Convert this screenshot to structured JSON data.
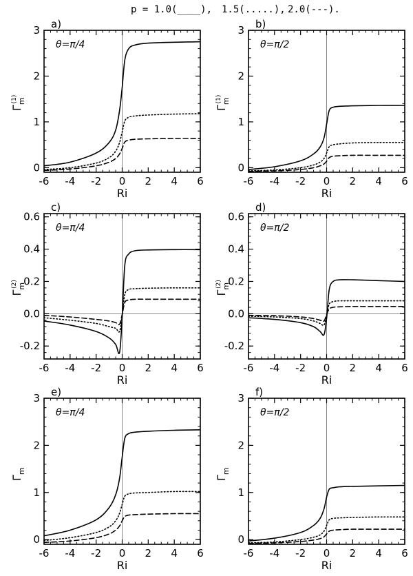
{
  "header": {
    "text": "p = 1.0(____),   1.5(.....),   2.0(---).",
    "legend": [
      {
        "label": "p = 1.0(____),",
        "style": "solid"
      },
      {
        "label": "1.5(.....),",
        "style": "dotted"
      },
      {
        "label": "2.0(---).",
        "style": "dashed"
      }
    ]
  },
  "chart_data": [
    {
      "type": "line",
      "panel_label": "a)",
      "annotation": "θ=π/4",
      "xlabel": "Ri",
      "ylabel": "Γ",
      "ylabel_sub": "m",
      "ylabel_sup": "(1)",
      "xlim": [
        -6,
        6
      ],
      "ylim": [
        -0.1,
        3.0
      ],
      "xticks": [
        -6,
        -4,
        -2,
        0,
        2,
        4,
        6
      ],
      "yticks": [
        0,
        1,
        2,
        3
      ],
      "ytick_labels": [
        "0",
        "1",
        "2",
        "3"
      ],
      "ref_vline": 0,
      "ref_hline": null,
      "series": [
        {
          "name": "p = 1.0",
          "style": "solid",
          "x": [
            -6,
            -4,
            -2,
            -1,
            -0.5,
            -0.2,
            0,
            0.2,
            0.5,
            1,
            2,
            4,
            6
          ],
          "y": [
            0.04,
            0.12,
            0.32,
            0.55,
            0.82,
            1.25,
            1.75,
            2.35,
            2.6,
            2.68,
            2.72,
            2.74,
            2.75
          ]
        },
        {
          "name": "p = 1.5",
          "style": "dotted",
          "x": [
            -6,
            -4,
            -2,
            -1,
            -0.5,
            -0.2,
            0,
            0.2,
            0.5,
            1,
            2,
            4,
            6
          ],
          "y": [
            -0.04,
            0.0,
            0.1,
            0.22,
            0.36,
            0.55,
            0.78,
            1.02,
            1.1,
            1.13,
            1.15,
            1.17,
            1.18
          ]
        },
        {
          "name": "p = 2.0",
          "style": "dashed",
          "x": [
            -6,
            -4,
            -2,
            -1,
            -0.5,
            -0.2,
            0,
            0.2,
            0.5,
            1,
            2,
            4,
            6
          ],
          "y": [
            -0.06,
            -0.03,
            0.04,
            0.12,
            0.2,
            0.3,
            0.42,
            0.56,
            0.6,
            0.62,
            0.63,
            0.64,
            0.64
          ]
        }
      ]
    },
    {
      "type": "line",
      "panel_label": "b)",
      "annotation": "θ=π/2",
      "xlabel": "Ri",
      "ylabel": "Γ",
      "ylabel_sub": "m",
      "ylabel_sup": "(1)",
      "xlim": [
        -6,
        6
      ],
      "ylim": [
        -0.1,
        3.0
      ],
      "xticks": [
        -6,
        -4,
        -2,
        0,
        2,
        4,
        6
      ],
      "yticks": [
        0,
        1,
        2,
        3
      ],
      "ytick_labels": [
        "0",
        "1",
        "2",
        "3"
      ],
      "ref_vline": 0,
      "ref_hline": null,
      "series": [
        {
          "name": "p = 1.0",
          "style": "solid",
          "x": [
            -6,
            -4,
            -2,
            -1,
            -0.5,
            -0.2,
            0,
            0.2,
            0.5,
            1,
            2,
            4,
            6
          ],
          "y": [
            -0.04,
            0.02,
            0.15,
            0.3,
            0.45,
            0.65,
            0.95,
            1.25,
            1.32,
            1.34,
            1.35,
            1.36,
            1.36
          ]
        },
        {
          "name": "p = 1.5",
          "style": "dotted",
          "x": [
            -6,
            -4,
            -2,
            -1,
            -0.5,
            -0.2,
            0,
            0.2,
            0.5,
            1,
            2,
            4,
            6
          ],
          "y": [
            -0.07,
            -0.05,
            0.0,
            0.06,
            0.12,
            0.2,
            0.32,
            0.46,
            0.5,
            0.52,
            0.54,
            0.55,
            0.55
          ]
        },
        {
          "name": "p = 2.0",
          "style": "dashed",
          "x": [
            -6,
            -4,
            -2,
            -1,
            -0.5,
            -0.2,
            0,
            0.2,
            0.5,
            1,
            2,
            4,
            6
          ],
          "y": [
            -0.08,
            -0.07,
            -0.04,
            0.0,
            0.04,
            0.08,
            0.14,
            0.22,
            0.25,
            0.26,
            0.27,
            0.27,
            0.27
          ]
        }
      ]
    },
    {
      "type": "line",
      "panel_label": "c)",
      "annotation": "θ=π/4",
      "xlabel": "Ri",
      "ylabel": "Γ",
      "ylabel_sub": "m",
      "ylabel_sup": "(2)",
      "xlim": [
        -6,
        6
      ],
      "ylim": [
        -0.28,
        0.62
      ],
      "xticks": [
        -6,
        -4,
        -2,
        0,
        2,
        4,
        6
      ],
      "yticks": [
        -0.2,
        0.0,
        0.2,
        0.4,
        0.6
      ],
      "ytick_labels": [
        "-0.2",
        "0.0",
        "0.2",
        "0.4",
        "0.6"
      ],
      "ref_vline": 0,
      "ref_hline": 0,
      "series": [
        {
          "name": "p = 1.0",
          "style": "solid",
          "x": [
            -6,
            -4,
            -2,
            -1,
            -0.5,
            -0.2,
            0,
            0.2,
            0.5,
            1,
            2,
            4,
            6
          ],
          "y": [
            -0.045,
            -0.07,
            -0.11,
            -0.15,
            -0.19,
            -0.24,
            -0.02,
            0.3,
            0.37,
            0.39,
            0.395,
            0.397,
            0.397
          ]
        },
        {
          "name": "p = 1.5",
          "style": "dotted",
          "x": [
            -6,
            -4,
            -2,
            -1,
            -0.5,
            -0.2,
            0,
            0.2,
            0.5,
            1,
            2,
            4,
            6
          ],
          "y": [
            -0.025,
            -0.04,
            -0.06,
            -0.08,
            -0.09,
            -0.11,
            -0.01,
            0.12,
            0.15,
            0.155,
            0.158,
            0.16,
            0.16
          ]
        },
        {
          "name": "p = 2.0",
          "style": "dashed",
          "x": [
            -6,
            -4,
            -2,
            -1,
            -0.5,
            -0.2,
            0,
            0.2,
            0.5,
            1,
            2,
            4,
            6
          ],
          "y": [
            -0.01,
            -0.02,
            -0.035,
            -0.045,
            -0.055,
            -0.065,
            -0.005,
            0.07,
            0.085,
            0.09,
            0.09,
            0.09,
            0.09
          ]
        }
      ]
    },
    {
      "type": "line",
      "panel_label": "d)",
      "annotation": "θ=π/2",
      "xlabel": "Ri",
      "ylabel": "Γ",
      "ylabel_sub": "m",
      "ylabel_sup": "(2)",
      "xlim": [
        -6,
        6
      ],
      "ylim": [
        -0.28,
        0.62
      ],
      "xticks": [
        -6,
        -4,
        -2,
        0,
        2,
        4,
        6
      ],
      "yticks": [
        -0.2,
        0.0,
        0.2,
        0.4,
        0.6
      ],
      "ytick_labels": [
        "-0.2",
        "0.0",
        "0.2",
        "0.4",
        "0.6"
      ],
      "ref_vline": 0,
      "ref_hline": 0,
      "series": [
        {
          "name": "p = 1.0",
          "style": "solid",
          "x": [
            -6,
            -4,
            -2,
            -1,
            -0.5,
            -0.2,
            0,
            0.2,
            0.5,
            1,
            2,
            4,
            6
          ],
          "y": [
            -0.025,
            -0.035,
            -0.055,
            -0.08,
            -0.11,
            -0.13,
            -0.03,
            0.15,
            0.2,
            0.21,
            0.21,
            0.205,
            0.2
          ]
        },
        {
          "name": "p = 1.5",
          "style": "dotted",
          "x": [
            -6,
            -4,
            -2,
            -1,
            -0.5,
            -0.2,
            0,
            0.2,
            0.5,
            1,
            2,
            4,
            6
          ],
          "y": [
            -0.015,
            -0.02,
            -0.03,
            -0.045,
            -0.06,
            -0.07,
            -0.01,
            0.06,
            0.075,
            0.08,
            0.08,
            0.08,
            0.08
          ]
        },
        {
          "name": "p = 2.0",
          "style": "dashed",
          "x": [
            -6,
            -4,
            -2,
            -1,
            -0.5,
            -0.2,
            0,
            0.2,
            0.5,
            1,
            2,
            4,
            6
          ],
          "y": [
            -0.01,
            -0.012,
            -0.02,
            -0.03,
            -0.04,
            -0.045,
            -0.005,
            0.03,
            0.04,
            0.043,
            0.045,
            0.045,
            0.045
          ]
        }
      ]
    },
    {
      "type": "line",
      "panel_label": "e)",
      "annotation": "θ=π/4",
      "xlabel": "Ri",
      "ylabel": "Γ",
      "ylabel_sub": "m",
      "ylabel_sup": "",
      "xlim": [
        -6,
        6
      ],
      "ylim": [
        -0.1,
        3.0
      ],
      "xticks": [
        -6,
        -4,
        -2,
        0,
        2,
        4,
        6
      ],
      "yticks": [
        0,
        1,
        2,
        3
      ],
      "ytick_labels": [
        "0",
        "1",
        "2",
        "3"
      ],
      "ref_vline": 0,
      "ref_hline": null,
      "series": [
        {
          "name": "p = 1.0",
          "style": "solid",
          "x": [
            -6,
            -4,
            -2,
            -1,
            -0.5,
            -0.2,
            0,
            0.2,
            0.5,
            1,
            2,
            4,
            6
          ],
          "y": [
            0.08,
            0.2,
            0.42,
            0.68,
            0.95,
            1.3,
            1.75,
            2.15,
            2.25,
            2.28,
            2.3,
            2.32,
            2.33
          ]
        },
        {
          "name": "p = 1.5",
          "style": "dotted",
          "x": [
            -6,
            -4,
            -2,
            -1,
            -0.5,
            -0.2,
            0,
            0.2,
            0.5,
            1,
            2,
            4,
            6
          ],
          "y": [
            -0.02,
            0.04,
            0.15,
            0.27,
            0.4,
            0.56,
            0.75,
            0.92,
            0.97,
            0.99,
            1.0,
            1.02,
            1.02
          ]
        },
        {
          "name": "p = 2.0",
          "style": "dashed",
          "x": [
            -6,
            -4,
            -2,
            -1,
            -0.5,
            -0.2,
            0,
            0.2,
            0.5,
            1,
            2,
            4,
            6
          ],
          "y": [
            -0.06,
            -0.03,
            0.04,
            0.12,
            0.2,
            0.29,
            0.4,
            0.49,
            0.52,
            0.53,
            0.54,
            0.55,
            0.55
          ]
        }
      ]
    },
    {
      "type": "line",
      "panel_label": "f)",
      "annotation": "θ=π/2",
      "xlabel": "Ri",
      "ylabel": "Γ",
      "ylabel_sub": "m",
      "ylabel_sup": "",
      "xlim": [
        -6,
        6
      ],
      "ylim": [
        -0.1,
        3.0
      ],
      "xticks": [
        -6,
        -4,
        -2,
        0,
        2,
        4,
        6
      ],
      "yticks": [
        0,
        1,
        2,
        3
      ],
      "ytick_labels": [
        "0",
        "1",
        "2",
        "3"
      ],
      "ref_vline": 0,
      "ref_hline": null,
      "series": [
        {
          "name": "p = 1.0",
          "style": "solid",
          "x": [
            -6,
            -4,
            -2,
            -1,
            -0.5,
            -0.2,
            0,
            0.2,
            0.5,
            1,
            2,
            4,
            6
          ],
          "y": [
            -0.03,
            0.03,
            0.15,
            0.3,
            0.45,
            0.65,
            0.9,
            1.07,
            1.1,
            1.12,
            1.13,
            1.14,
            1.15
          ]
        },
        {
          "name": "p = 1.5",
          "style": "dotted",
          "x": [
            -6,
            -4,
            -2,
            -1,
            -0.5,
            -0.2,
            0,
            0.2,
            0.5,
            1,
            2,
            4,
            6
          ],
          "y": [
            -0.07,
            -0.05,
            0.0,
            0.05,
            0.1,
            0.18,
            0.3,
            0.42,
            0.45,
            0.46,
            0.47,
            0.48,
            0.48
          ]
        },
        {
          "name": "p = 2.0",
          "style": "dashed",
          "x": [
            -6,
            -4,
            -2,
            -1,
            -0.5,
            -0.2,
            0,
            0.2,
            0.5,
            1,
            2,
            4,
            6
          ],
          "y": [
            -0.08,
            -0.07,
            -0.04,
            -0.01,
            0.02,
            0.06,
            0.12,
            0.18,
            0.2,
            0.21,
            0.22,
            0.22,
            0.22
          ]
        }
      ]
    }
  ]
}
